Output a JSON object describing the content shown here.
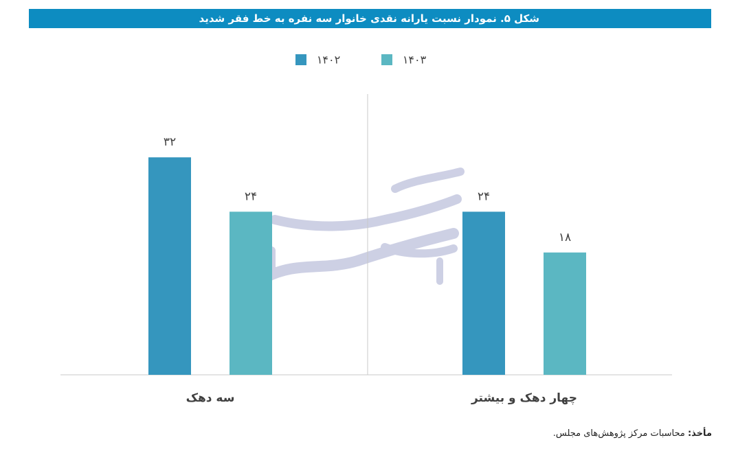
{
  "title": "شکل ۵. نمودار نسبت یارانه نقدی خانوار سه نفره به خط فقر شدید",
  "source": {
    "label": "مأخذ:",
    "text": "محاسبات مرکز پژوهش‌های مجلس."
  },
  "colors": {
    "title_bg": "#0d8cc1",
    "series_1402": "#3596be",
    "series_1403": "#5bb7c2",
    "axis": "#c8c8c8",
    "label": "#404040",
    "watermark": "#c5c8e0"
  },
  "chart_data": {
    "type": "bar",
    "categories": [
      "سه دهک",
      "چهار دهک و بیشتر"
    ],
    "series": [
      {
        "name": "۱۴۰۲",
        "values": [
          32,
          24
        ],
        "labels": [
          "۳۲",
          "۲۴"
        ]
      },
      {
        "name": "۱۴۰۳",
        "values": [
          24,
          18
        ],
        "labels": [
          "۲۴",
          "۱۸"
        ]
      }
    ],
    "ylim": [
      0,
      40
    ],
    "grid": false,
    "legend_position": "top-center",
    "category_divider": true
  }
}
